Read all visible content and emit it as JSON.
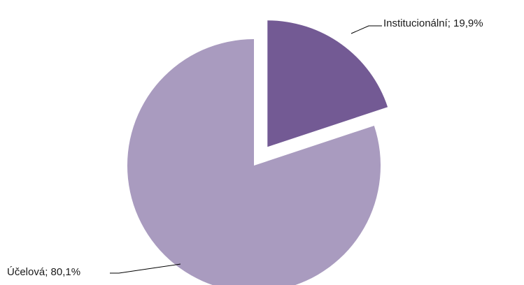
{
  "chart_data": {
    "type": "pie",
    "exploded": true,
    "categories": [
      "Institucionální",
      "Účelová"
    ],
    "values": [
      19.9,
      80.1
    ],
    "labels": [
      "Institucionální; 19,9%",
      "Účelová; 80,1%"
    ],
    "colors": [
      "#735a94",
      "#a99bbf"
    ],
    "legend": "none"
  }
}
